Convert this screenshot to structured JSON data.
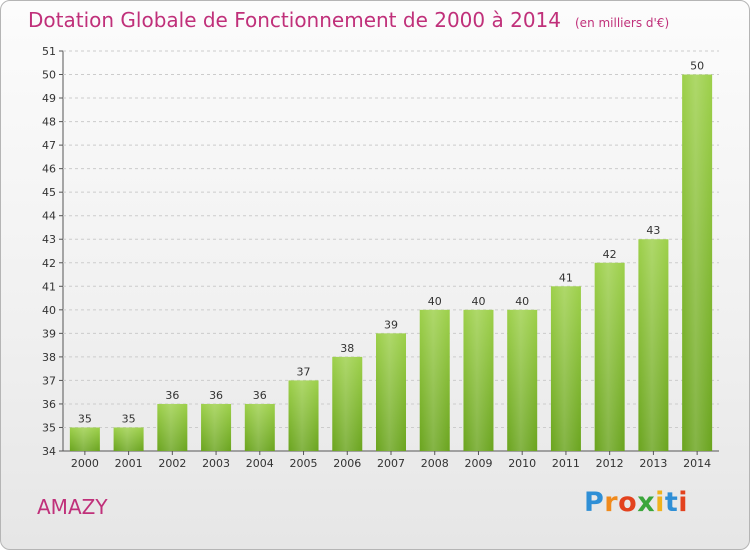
{
  "header": {
    "title": "Dotation Globale de Fonctionnement de 2000 à 2014",
    "subtitle": "(en milliers d'€)"
  },
  "commune": "AMAZY",
  "logo": {
    "text": "Proxiti",
    "letters": [
      {
        "ch": "P",
        "color": "#2f8fd6"
      },
      {
        "ch": "r",
        "color": "#f08a1c"
      },
      {
        "ch": "o",
        "color": "#e3421e"
      },
      {
        "ch": "x",
        "color": "#3aa63a"
      },
      {
        "ch": "i",
        "color": "#f0b21c"
      },
      {
        "ch": "t",
        "color": "#2f8fd6"
      },
      {
        "ch": "i",
        "color": "#e3421e"
      }
    ]
  },
  "colors": {
    "accent": "#c0307a",
    "bar_light": "#9dd04a",
    "bar_dark": "#6aa41e",
    "grid": "#cccccc",
    "axis": "#555555"
  },
  "chart_data": {
    "type": "bar",
    "title": "Dotation Globale de Fonctionnement de 2000 à 2014",
    "subtitle": "(en milliers d'€)",
    "categories": [
      "2000",
      "2001",
      "2002",
      "2003",
      "2004",
      "2005",
      "2006",
      "2007",
      "2008",
      "2009",
      "2010",
      "2011",
      "2012",
      "2013",
      "2014"
    ],
    "values": [
      35,
      35,
      36,
      36,
      36,
      37,
      38,
      39,
      40,
      40,
      40,
      41,
      42,
      43,
      50
    ],
    "data_labels": [
      "35",
      "35",
      "36",
      "36",
      "36",
      "37",
      "38",
      "39",
      "40",
      "40",
      "40",
      "41",
      "42",
      "43",
      "50"
    ],
    "yticks": [
      "34",
      "35",
      "36",
      "37",
      "38",
      "39",
      "40",
      "41",
      "42",
      "43",
      "44",
      "45",
      "46",
      "47",
      "48",
      "49",
      "50",
      "51"
    ],
    "ylim": [
      34,
      51
    ],
    "xlabel": "",
    "ylabel": "",
    "grid": "horizontal-dashed",
    "legend": "none"
  }
}
